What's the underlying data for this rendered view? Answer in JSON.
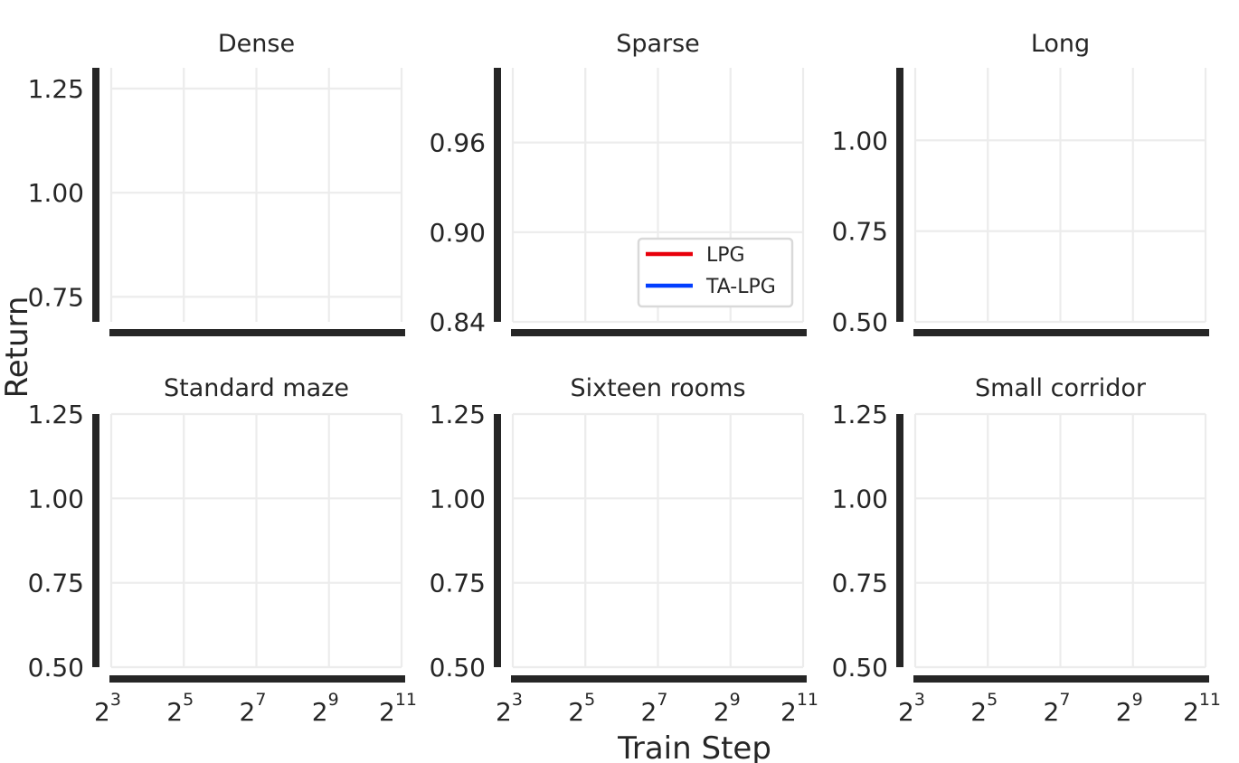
{
  "figure": {
    "xlabel": "Train Step",
    "ylabel": "Return",
    "legend": {
      "placement": "lower-right of Sparse panel",
      "entries": [
        {
          "label": "LPG",
          "color": "#e8000b"
        },
        {
          "label": "TA-LPG",
          "color": "#023eff"
        }
      ]
    }
  },
  "chart_data": [
    {
      "type": "line",
      "title": "Dense",
      "xscale": "log2",
      "xlim": [
        8,
        2048
      ],
      "xticks": [
        8,
        32,
        128,
        512,
        2048
      ],
      "ylim": [
        0.69,
        1.3
      ],
      "yticks": [
        0.75,
        1.0,
        1.25
      ],
      "ytick_labels": [
        "0.75",
        "1.00",
        "1.25"
      ],
      "show_xtick_labels": false,
      "grid": true,
      "series": []
    },
    {
      "type": "line",
      "title": "Sparse",
      "xscale": "log2",
      "xlim": [
        8,
        2048
      ],
      "xticks": [
        8,
        32,
        128,
        512,
        2048
      ],
      "ylim": [
        0.84,
        1.01
      ],
      "yticks": [
        0.84,
        0.9,
        0.96
      ],
      "ytick_labels": [
        "0.84",
        "0.90",
        "0.96"
      ],
      "show_xtick_labels": false,
      "grid": true,
      "series": []
    },
    {
      "type": "line",
      "title": "Long",
      "xscale": "log2",
      "xlim": [
        8,
        2048
      ],
      "xticks": [
        8,
        32,
        128,
        512,
        2048
      ],
      "ylim": [
        0.5,
        1.2
      ],
      "yticks": [
        0.5,
        0.75,
        1.0
      ],
      "ytick_labels": [
        "0.50",
        "0.75",
        "1.00"
      ],
      "show_xtick_labels": false,
      "grid": true,
      "series": []
    },
    {
      "type": "line",
      "title": "Standard maze",
      "xscale": "log2",
      "xlim": [
        8,
        2048
      ],
      "xticks": [
        8,
        32,
        128,
        512,
        2048
      ],
      "ylim": [
        0.5,
        1.25
      ],
      "yticks": [
        0.5,
        0.75,
        1.0,
        1.25
      ],
      "ytick_labels": [
        "0.50",
        "0.75",
        "1.00",
        "1.25"
      ],
      "show_xtick_labels": true,
      "grid": true,
      "series": []
    },
    {
      "type": "line",
      "title": "Sixteen rooms",
      "xscale": "log2",
      "xlim": [
        8,
        2048
      ],
      "xticks": [
        8,
        32,
        128,
        512,
        2048
      ],
      "ylim": [
        0.5,
        1.25
      ],
      "yticks": [
        0.5,
        0.75,
        1.0,
        1.25
      ],
      "ytick_labels": [
        "0.50",
        "0.75",
        "1.00",
        "1.25"
      ],
      "show_xtick_labels": true,
      "grid": true,
      "series": []
    },
    {
      "type": "line",
      "title": "Small corridor",
      "xscale": "log2",
      "xlim": [
        8,
        2048
      ],
      "xticks": [
        8,
        32,
        128,
        512,
        2048
      ],
      "ylim": [
        0.5,
        1.25
      ],
      "yticks": [
        0.5,
        0.75,
        1.0,
        1.25
      ],
      "ytick_labels": [
        "0.50",
        "0.75",
        "1.00",
        "1.25"
      ],
      "show_xtick_labels": true,
      "grid": true,
      "series": []
    }
  ],
  "xtick_labels": [
    {
      "base": "2",
      "exp": "3"
    },
    {
      "base": "2",
      "exp": "5"
    },
    {
      "base": "2",
      "exp": "7"
    },
    {
      "base": "2",
      "exp": "9"
    },
    {
      "base": "2",
      "exp": "11"
    }
  ]
}
